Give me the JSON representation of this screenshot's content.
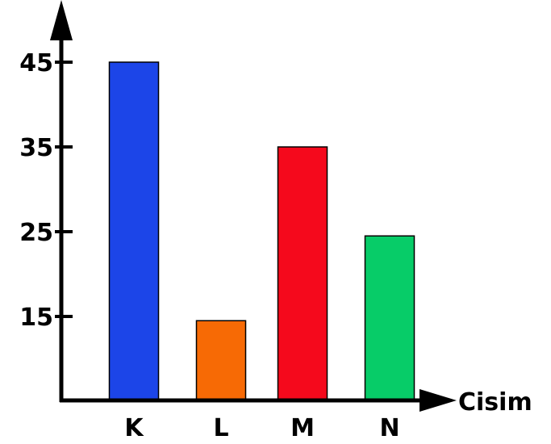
{
  "chart_data": {
    "type": "bar",
    "title": "",
    "xlabel": "Cisim",
    "ylabel": "",
    "categories": [
      "K",
      "L",
      "M",
      "N"
    ],
    "values": [
      45,
      14.5,
      35,
      24.5
    ],
    "colors": [
      "#1c45e8",
      "#f76a05",
      "#f5091c",
      "#07cc68"
    ],
    "yticks": [
      15,
      25,
      35,
      45
    ],
    "ylim": [
      7.5,
      53
    ],
    "grid": false,
    "legend": "none"
  }
}
